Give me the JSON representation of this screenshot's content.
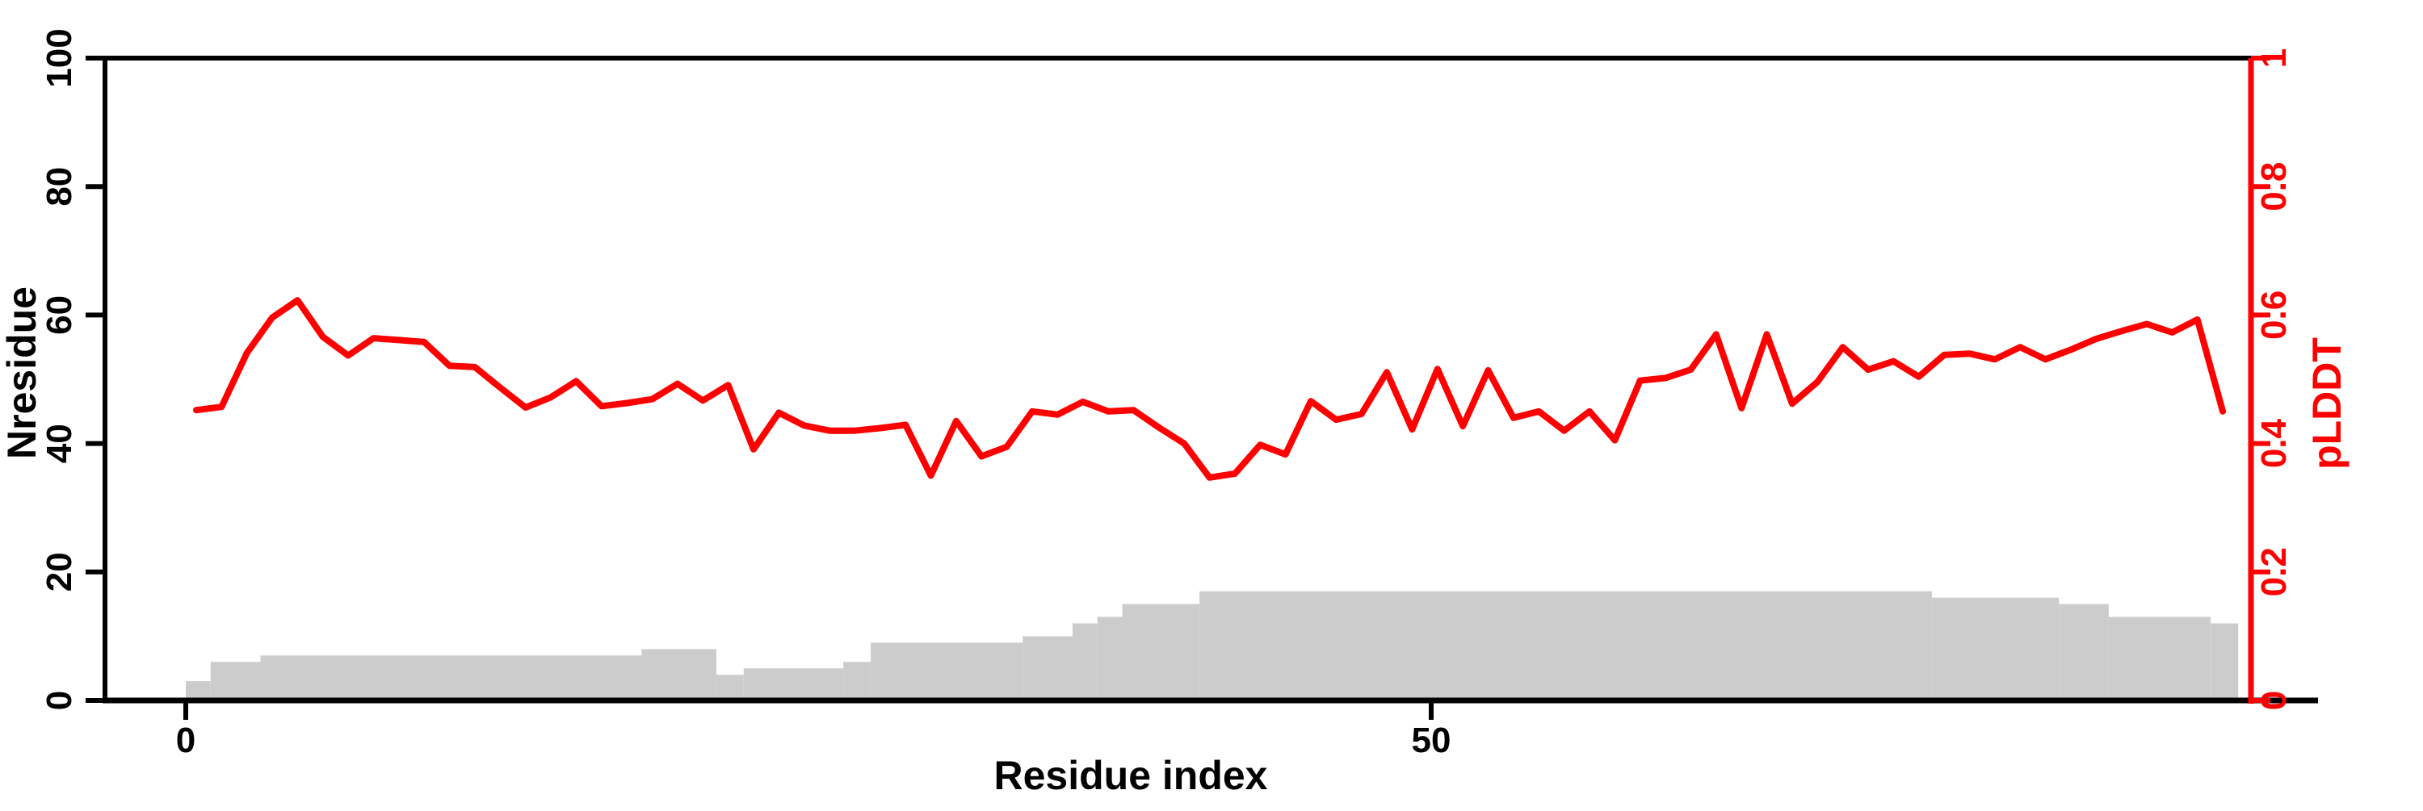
{
  "figure": {
    "background_color": "#ffffff",
    "left_axis": {
      "title": "Nresidue",
      "color": "#000000",
      "range": [
        0,
        100
      ],
      "ticks": [
        0,
        20,
        40,
        60,
        80,
        100
      ],
      "tick_labels": [
        "0",
        "20",
        "40",
        "60",
        "80",
        "100"
      ]
    },
    "right_axis": {
      "title": "pLDDT",
      "color": "#ff0000",
      "range": [
        0,
        1
      ],
      "ticks": [
        0,
        0.2,
        0.4,
        0.6,
        0.8,
        1
      ],
      "tick_labels": [
        "0",
        "0.2",
        "0.4",
        "0.6",
        "0.8",
        "1"
      ]
    },
    "x_axis": {
      "title": "Residue index",
      "color": "#000000",
      "ticks": [
        0,
        50
      ],
      "tick_labels": [
        "0",
        "50"
      ]
    }
  },
  "chart_data": {
    "type": "composite",
    "title": "",
    "xlabel": "Residue index",
    "ylabel_left": "Nresidue",
    "ylabel_right": "pLDDT",
    "x_range_residues": [
      -3.2,
      83.2
    ],
    "left_ylim": [
      0,
      100
    ],
    "right_ylim": [
      0,
      1
    ],
    "grid": false,
    "legend": "none",
    "series": [
      {
        "name": "Nresidue",
        "type": "bar",
        "axis": "left",
        "color": "#cccccc",
        "segments": [
          {
            "from": 0,
            "to": 1,
            "value": 3
          },
          {
            "from": 1,
            "to": 3,
            "value": 6
          },
          {
            "from": 3,
            "to": 18.3,
            "value": 7
          },
          {
            "from": 18.3,
            "to": 21.3,
            "value": 8
          },
          {
            "from": 21.3,
            "to": 22.4,
            "value": 4
          },
          {
            "from": 22.4,
            "to": 26.4,
            "value": 5
          },
          {
            "from": 26.4,
            "to": 27.5,
            "value": 6
          },
          {
            "from": 27.5,
            "to": 33.6,
            "value": 9
          },
          {
            "from": 33.6,
            "to": 35.6,
            "value": 10
          },
          {
            "from": 35.6,
            "to": 36.6,
            "value": 12
          },
          {
            "from": 36.6,
            "to": 37.6,
            "value": 13
          },
          {
            "from": 37.6,
            "to": 40.7,
            "value": 15
          },
          {
            "from": 40.7,
            "to": 70.1,
            "value": 17
          },
          {
            "from": 70.1,
            "to": 75.2,
            "value": 16
          },
          {
            "from": 75.2,
            "to": 77.2,
            "value": 15
          },
          {
            "from": 77.2,
            "to": 81.3,
            "value": 13
          },
          {
            "from": 81.3,
            "to": 82.4,
            "value": 12
          }
        ]
      },
      {
        "name": "pLDDT",
        "type": "line",
        "axis": "right",
        "color": "#ff0000",
        "x_start": 0.42,
        "x_step": 1.017,
        "values": [
          0.452,
          0.457,
          0.541,
          0.596,
          0.623,
          0.566,
          0.537,
          0.564,
          0.561,
          0.558,
          0.521,
          0.519,
          0.487,
          0.456,
          0.472,
          0.497,
          0.458,
          0.463,
          0.469,
          0.493,
          0.467,
          0.491,
          0.391,
          0.448,
          0.428,
          0.42,
          0.42,
          0.424,
          0.429,
          0.35,
          0.435,
          0.38,
          0.395,
          0.45,
          0.445,
          0.465,
          0.45,
          0.452,
          0.425,
          0.4,
          0.347,
          0.353,
          0.398,
          0.383,
          0.466,
          0.437,
          0.446,
          0.511,
          0.422,
          0.516,
          0.427,
          0.514,
          0.44,
          0.45,
          0.42,
          0.45,
          0.405,
          0.498,
          0.502,
          0.515,
          0.57,
          0.455,
          0.57,
          0.462,
          0.496,
          0.55,
          0.515,
          0.528,
          0.504,
          0.538,
          0.54,
          0.531,
          0.55,
          0.531,
          0.546,
          0.563,
          0.575,
          0.586,
          0.573,
          0.593,
          0.45
        ]
      }
    ]
  }
}
